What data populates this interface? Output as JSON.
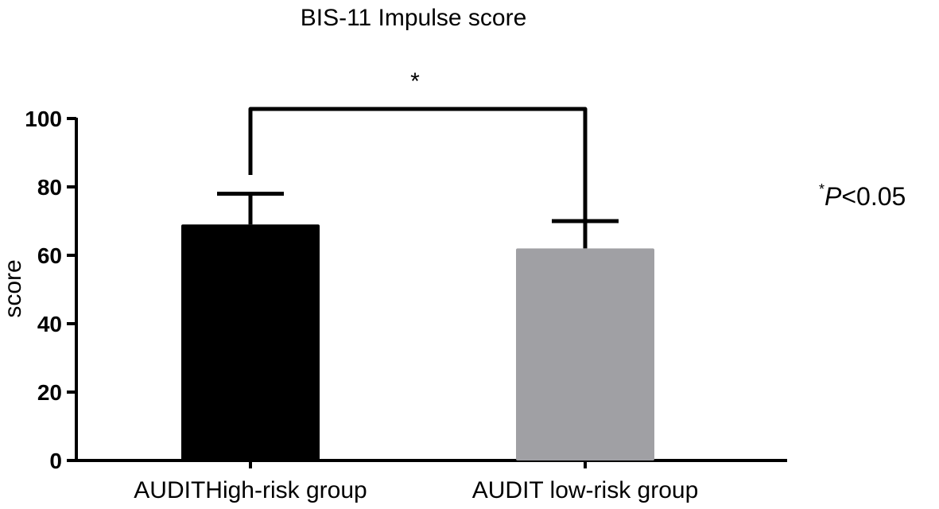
{
  "chart_data": {
    "type": "bar",
    "title": "BIS-11 Impulse score",
    "xlabel": "",
    "ylabel": "score",
    "ylim": [
      0,
      100
    ],
    "yticks": [
      0,
      20,
      40,
      60,
      80,
      100
    ],
    "categories": [
      "AUDITHigh-risk group",
      "AUDIT low-risk group"
    ],
    "values": [
      69,
      62
    ],
    "error_upper": [
      78,
      70
    ],
    "colors": [
      "#000000",
      "#a0a0a4"
    ],
    "grid": false,
    "significance": {
      "between": [
        0,
        1
      ],
      "label": "*"
    },
    "annotation": {
      "star": "*",
      "p_label": "P",
      "rest": "<0.05"
    }
  }
}
